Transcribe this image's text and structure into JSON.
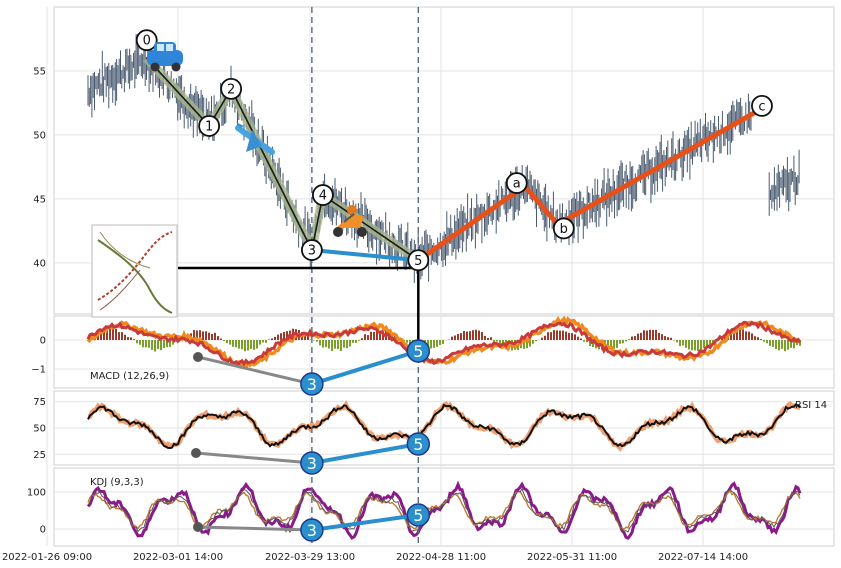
{
  "chart_data": [
    {
      "type": "line",
      "panel": "price",
      "ylim": [
        36,
        60
      ],
      "yticks": [
        "40",
        "45",
        "50",
        "55"
      ],
      "series": [],
      "wave_points": [
        {
          "label": "0",
          "x": "2022-02-11",
          "y": 56.0
        },
        {
          "label": "1",
          "x": "2022-02-28",
          "y": 50.7
        },
        {
          "label": "2",
          "x": "2022-03-06",
          "y": 53.6
        },
        {
          "label": "3",
          "x": "2022-03-28",
          "y": 41.0
        },
        {
          "label": "4",
          "x": "2022-03-31",
          "y": 45.3
        },
        {
          "label": "5",
          "x": "2022-04-26",
          "y": 40.2
        },
        {
          "label": "a",
          "x": "2022-05-25",
          "y": 46.0
        },
        {
          "label": "b",
          "x": "2022-06-03",
          "y": 43.0
        },
        {
          "label": "c",
          "x": "2022-07-27",
          "y": 51.8
        }
      ],
      "impulse_path": [
        "0",
        "1",
        "2",
        "3",
        "4",
        "5"
      ],
      "correction_path": [
        "5",
        "a",
        "b",
        "c"
      ],
      "dashed_vlines": [
        "2022-03-28",
        "2022-04-26"
      ],
      "marker_icons": [
        "car-icon",
        "airplane-icon",
        "scooter-icon"
      ],
      "colors": {
        "price": "#4a5a70",
        "impulse": "#1a1a1a",
        "impulse_halo": "#a8b78d",
        "correction": "#e8501a",
        "divergence": "#2a8fcc"
      }
    },
    {
      "type": "line",
      "panel": "macd",
      "title": "MACD (12,26,9)",
      "yticks": [
        "0",
        "−1"
      ],
      "series": [
        {
          "color": "#f08a1c"
        },
        {
          "color": "#c93a3a"
        },
        {
          "color": "#7aa02a"
        }
      ],
      "divergence_markers": [
        "3",
        "5"
      ]
    },
    {
      "type": "line",
      "panel": "rsi",
      "title": "RSI 14",
      "ylim": [
        15,
        85
      ],
      "yticks": [
        "75",
        "50",
        "25"
      ],
      "divergence_markers": [
        "3",
        "5"
      ]
    },
    {
      "type": "line",
      "panel": "kdj",
      "title": "KDJ (9,3,3)",
      "yticks": [
        "100",
        "0"
      ],
      "divergence_markers": [
        "3",
        "5"
      ]
    }
  ],
  "x_axis": {
    "tick_labels": [
      "2022-01-26 09:00",
      "2022-03-01 14:00",
      "2022-03-29 13:00",
      "2022-04-28 11:00",
      "2022-05-31 11:00",
      "2022-07-14 14:00"
    ]
  }
}
